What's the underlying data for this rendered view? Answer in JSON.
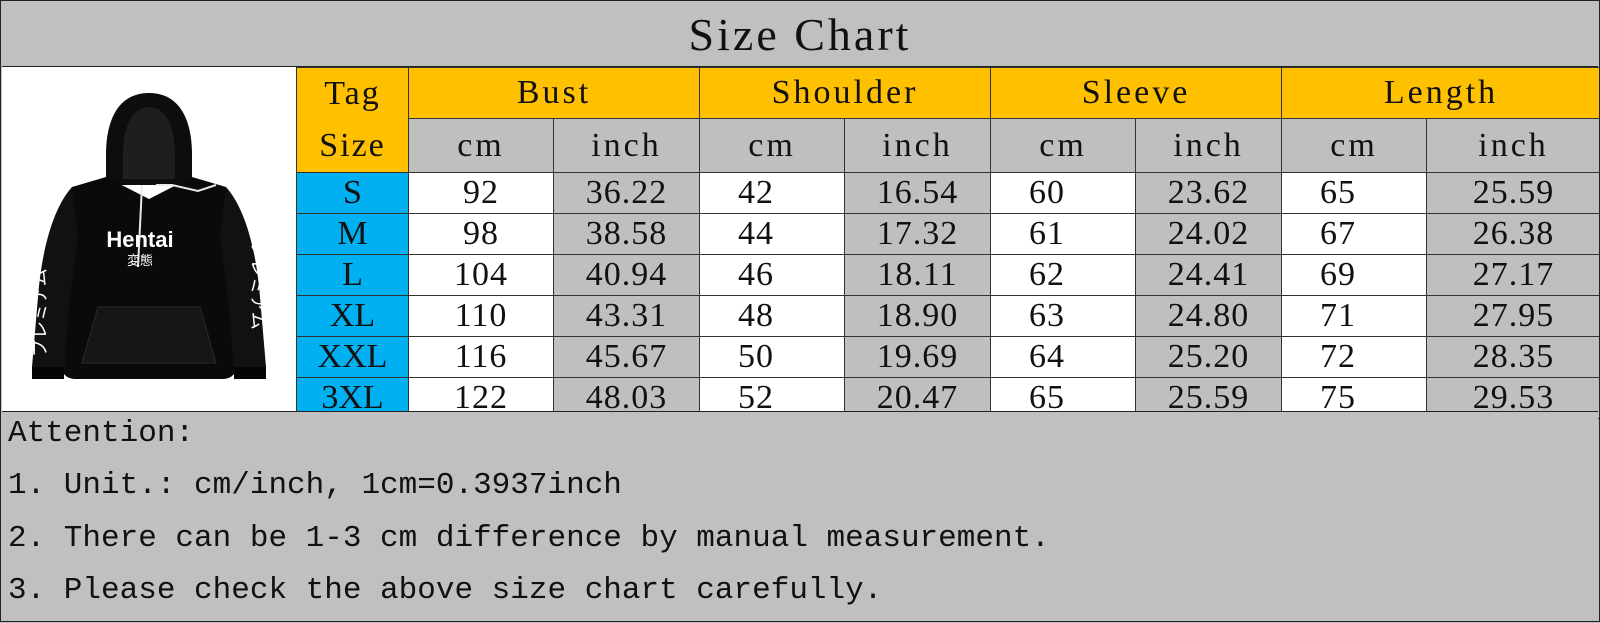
{
  "title": "Size Chart",
  "image": {
    "brand_text": "Hentai",
    "kanji_text": "変態",
    "sleeve_text": "プレミアム"
  },
  "table": {
    "tag_header_line1": "Tag",
    "tag_header_line2": "Size",
    "groups": [
      "Bust",
      "Shoulder",
      "Sleeve",
      "Length"
    ],
    "units": [
      "cm",
      "inch",
      "cm",
      "inch",
      "cm",
      "inch",
      "cm",
      "inch"
    ],
    "rows": [
      {
        "size": "S",
        "values": [
          "92",
          "36.22",
          "42",
          "16.54",
          "60",
          "23.62",
          "65",
          "25.59"
        ]
      },
      {
        "size": "M",
        "values": [
          "98",
          "38.58",
          "44",
          "17.32",
          "61",
          "24.02",
          "67",
          "26.38"
        ]
      },
      {
        "size": "L",
        "values": [
          "104",
          "40.94",
          "46",
          "18.11",
          "62",
          "24.41",
          "69",
          "27.17"
        ]
      },
      {
        "size": "XL",
        "values": [
          "110",
          "43.31",
          "48",
          "18.90",
          "63",
          "24.80",
          "71",
          "27.95"
        ]
      },
      {
        "size": "XXL",
        "values": [
          "116",
          "45.67",
          "50",
          "19.69",
          "64",
          "25.20",
          "72",
          "28.35"
        ]
      },
      {
        "size": "3XL",
        "values": [
          "122",
          "48.03",
          "52",
          "20.47",
          "65",
          "25.59",
          "75",
          "29.53"
        ]
      }
    ]
  },
  "notes": {
    "heading": "Attention:",
    "lines": [
      "1. Unit.: cm/inch, 1cm=0.3937inch",
      "2. There can be 1-3 cm difference by manual measurement.",
      "3. Please check the above size chart carefully."
    ]
  },
  "colors": {
    "header_yellow": "#ffc000",
    "size_blue": "#00b0f0",
    "grey": "#bfbfbf",
    "white": "#ffffff"
  }
}
